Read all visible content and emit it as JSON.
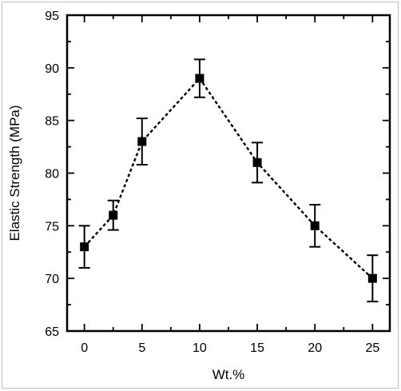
{
  "chart_data": {
    "type": "line",
    "title": "",
    "xlabel": "Wt.%",
    "ylabel": "Elastic Strength (MPa)",
    "xlim": [
      -1.5,
      26.5
    ],
    "ylim": [
      65,
      95
    ],
    "xticks": [
      0,
      5,
      10,
      15,
      20,
      25
    ],
    "yticks": [
      65,
      70,
      75,
      80,
      85,
      90,
      95
    ],
    "x_minor_ticks": [
      2.5,
      7.5,
      12.5,
      17.5,
      22.5
    ],
    "y_minor_ticks": [
      67.5,
      72.5,
      77.5,
      82.5,
      87.5,
      92.5
    ],
    "grid": false,
    "legend": "none",
    "line_style": "dashed",
    "marker": "square",
    "color": "#000000",
    "series": [
      {
        "x": [
          0,
          2.5,
          5,
          10,
          15,
          20,
          25
        ],
        "y": [
          73,
          76,
          83,
          89,
          81,
          75,
          70
        ],
        "error": [
          2,
          1.4,
          2.2,
          1.8,
          1.9,
          2,
          2.2
        ]
      }
    ]
  }
}
